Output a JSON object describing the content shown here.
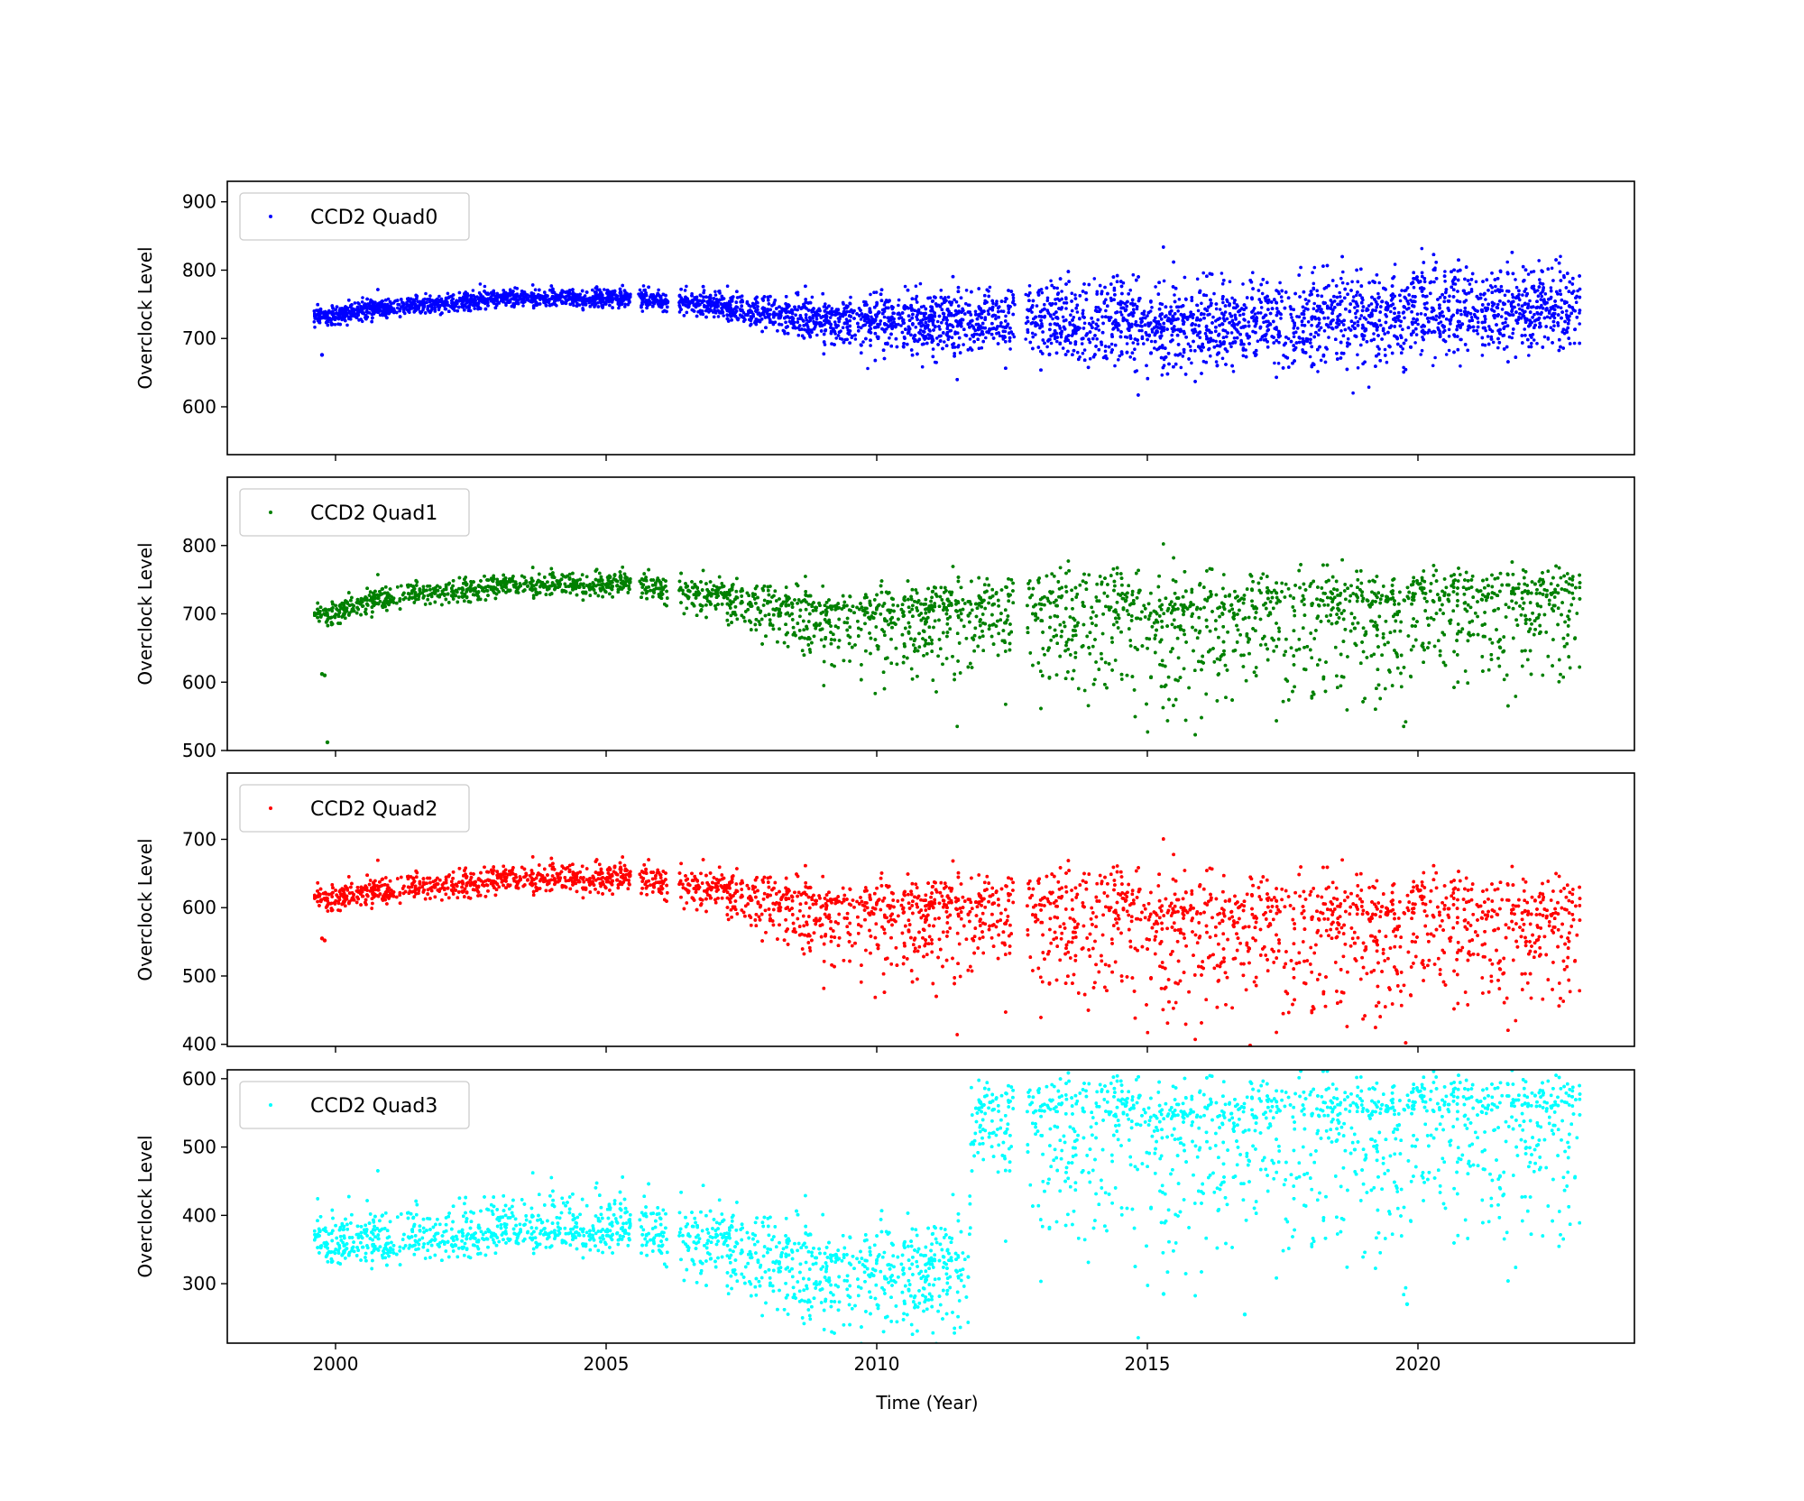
{
  "chart_data": [
    {
      "type": "scatter",
      "legend": "CCD2 Quad0",
      "legend_position": "upper-left",
      "color": "#0000ff",
      "ylabel": "Overclock Level",
      "ylim": [
        530,
        930
      ],
      "yticks": [
        600,
        700,
        800,
        900
      ],
      "gaps": [
        [
          2005.45,
          2005.6
        ],
        [
          2006.15,
          2006.35
        ],
        [
          2012.55,
          2012.75
        ]
      ],
      "trend_points": [
        [
          1999.6,
          730,
          15,
          15
        ],
        [
          2001.0,
          745,
          15,
          15
        ],
        [
          2003.0,
          758,
          15,
          15
        ],
        [
          2005.4,
          760,
          15,
          15
        ],
        [
          2007.0,
          748,
          20,
          20
        ],
        [
          2009.0,
          730,
          40,
          35
        ],
        [
          2011.0,
          722,
          55,
          50
        ],
        [
          2013.0,
          728,
          60,
          60
        ],
        [
          2015.0,
          722,
          70,
          65
        ],
        [
          2018.0,
          725,
          80,
          70
        ],
        [
          2020.0,
          740,
          75,
          75
        ],
        [
          2022.0,
          745,
          70,
          70
        ],
        [
          2023.0,
          745,
          70,
          70
        ]
      ],
      "outliers": [
        [
          1999.75,
          676
        ]
      ]
    },
    {
      "type": "scatter",
      "legend": "CCD2 Quad1",
      "legend_position": "upper-left",
      "color": "#008000",
      "ylabel": "Overclock Level",
      "ylim": [
        500,
        900
      ],
      "yticks": [
        500,
        600,
        700,
        800
      ],
      "gaps": [
        [
          2005.45,
          2005.6
        ],
        [
          2006.15,
          2006.35
        ],
        [
          2012.55,
          2012.75
        ]
      ],
      "trend_points": [
        [
          1999.6,
          695,
          20,
          15
        ],
        [
          2001.0,
          725,
          20,
          20
        ],
        [
          2003.0,
          740,
          20,
          20
        ],
        [
          2005.4,
          745,
          20,
          20
        ],
        [
          2007.0,
          728,
          40,
          25
        ],
        [
          2009.0,
          700,
          80,
          40
        ],
        [
          2011.0,
          700,
          110,
          50
        ],
        [
          2013.0,
          710,
          120,
          60
        ],
        [
          2015.0,
          700,
          150,
          60
        ],
        [
          2018.0,
          710,
          160,
          55
        ],
        [
          2020.0,
          715,
          155,
          50
        ],
        [
          2022.0,
          730,
          145,
          40
        ],
        [
          2023.0,
          730,
          145,
          40
        ]
      ],
      "outliers": [
        [
          1999.75,
          612
        ],
        [
          1999.8,
          610
        ],
        [
          1999.85,
          512
        ]
      ]
    },
    {
      "type": "scatter",
      "legend": "CCD2 Quad2",
      "legend_position": "upper-left",
      "color": "#ff0000",
      "ylabel": "Overclock Level",
      "ylim": [
        397,
        797
      ],
      "yticks": [
        400,
        500,
        600,
        700
      ],
      "gaps": [
        [
          2005.45,
          2005.6
        ],
        [
          2006.15,
          2006.35
        ],
        [
          2012.55,
          2012.75
        ]
      ],
      "trend_points": [
        [
          1999.6,
          610,
          20,
          20
        ],
        [
          2001.0,
          625,
          20,
          25
        ],
        [
          2003.0,
          640,
          25,
          25
        ],
        [
          2005.4,
          645,
          25,
          25
        ],
        [
          2007.0,
          628,
          40,
          30
        ],
        [
          2009.0,
          600,
          90,
          45
        ],
        [
          2011.0,
          595,
          120,
          55
        ],
        [
          2013.0,
          600,
          130,
          60
        ],
        [
          2015.0,
          590,
          150,
          65
        ],
        [
          2018.0,
          580,
          160,
          70
        ],
        [
          2020.0,
          585,
          165,
          70
        ],
        [
          2022.0,
          590,
          150,
          60
        ],
        [
          2023.0,
          590,
          150,
          60
        ]
      ],
      "outliers": [
        [
          1999.75,
          555
        ],
        [
          1999.8,
          552
        ],
        [
          2016.9,
          398
        ]
      ]
    },
    {
      "type": "scatter",
      "legend": "CCD2 Quad3",
      "legend_position": "upper-left",
      "color": "#00ffff",
      "ylabel": "Overclock Level",
      "xlabel": "Time (Year)",
      "ylim": [
        213,
        613
      ],
      "yticks": [
        300,
        400,
        500,
        600
      ],
      "gaps": [
        [
          2005.45,
          2005.6
        ],
        [
          2006.15,
          2006.35
        ],
        [
          2012.55,
          2012.75
        ]
      ],
      "trend_points": [
        [
          1999.6,
          355,
          25,
          55
        ],
        [
          2001.0,
          360,
          35,
          55
        ],
        [
          2003.0,
          375,
          35,
          65
        ],
        [
          2005.4,
          380,
          35,
          65
        ],
        [
          2007.0,
          365,
          80,
          55
        ],
        [
          2009.0,
          320,
          100,
          80
        ],
        [
          2011.7,
          315,
          100,
          90
        ],
        [
          2011.75,
          545,
          110,
          60
        ],
        [
          2013.0,
          550,
          200,
          50
        ],
        [
          2016.0,
          540,
          220,
          60
        ],
        [
          2019.0,
          545,
          230,
          60
        ],
        [
          2022.0,
          560,
          230,
          45
        ],
        [
          2023.0,
          560,
          230,
          45
        ]
      ],
      "outliers": [
        [
          2016.8,
          255
        ],
        [
          2015.3,
          285
        ],
        [
          2019.8,
          270
        ]
      ]
    }
  ],
  "x_axis": {
    "xlim": [
      1998,
      2024
    ],
    "ticks": [
      2000,
      2005,
      2010,
      2015,
      2020
    ],
    "tick_labels": [
      "2000",
      "2005",
      "2010",
      "2015",
      "2020"
    ],
    "xlabel": "Time (Year)",
    "data_start": 1999.6,
    "data_end": 2023.0
  }
}
